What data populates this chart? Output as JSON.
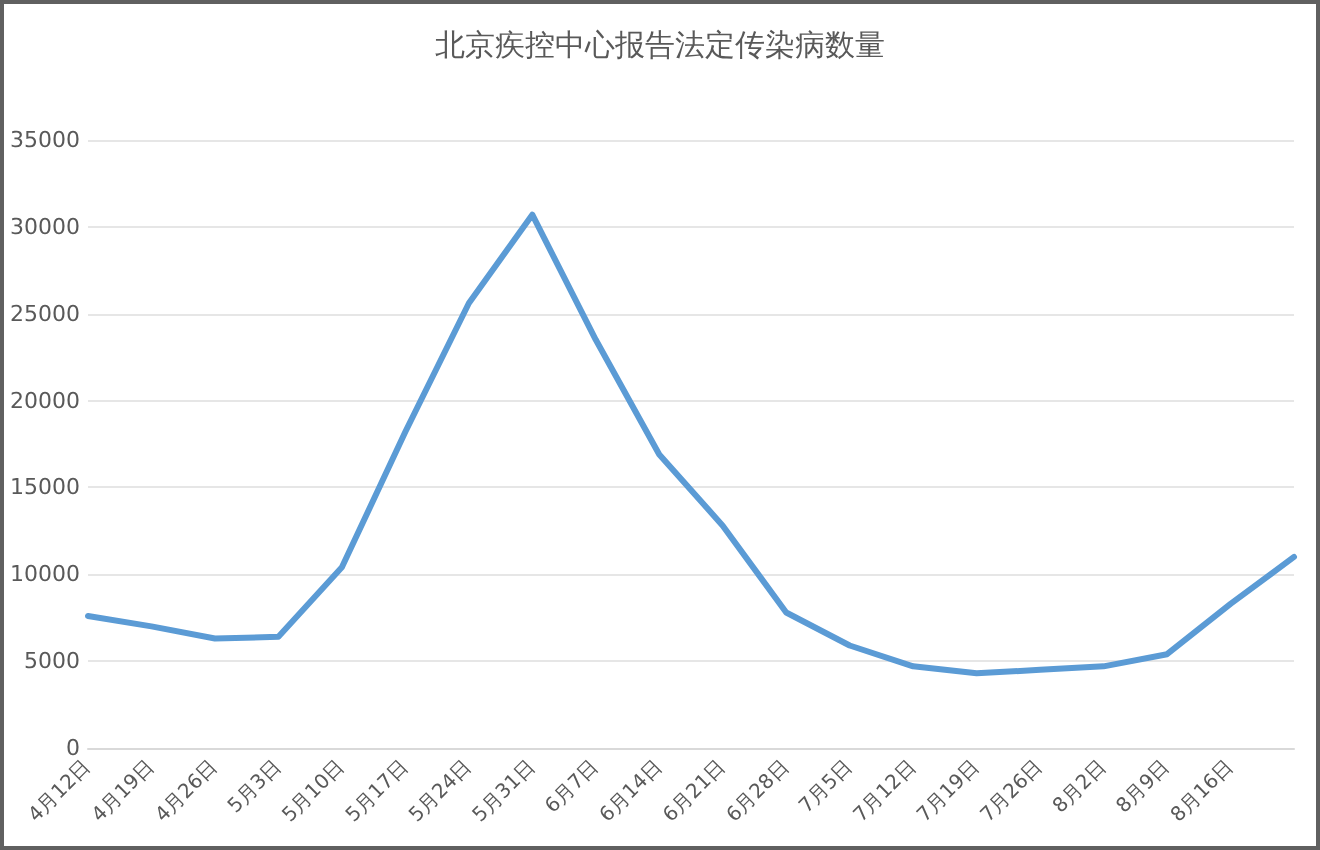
{
  "chart_data": {
    "type": "line",
    "title": "北京疾控中心报告法定传染病数量",
    "categories": [
      "4月12日",
      "4月19日",
      "4月26日",
      "5月3日",
      "5月10日",
      "5月17日",
      "5月24日",
      "5月31日",
      "6月7日",
      "6月14日",
      "6月21日",
      "6月28日",
      "7月5日",
      "7月12日",
      "7月19日",
      "7月26日",
      "8月2日",
      "8月9日",
      "8月16日",
      null
    ],
    "values": [
      7600,
      7000,
      6300,
      6400,
      10400,
      18200,
      25600,
      30700,
      23500,
      16900,
      12800,
      7800,
      5900,
      4700,
      4300,
      4500,
      4700,
      5400,
      8300,
      11000
    ],
    "color": "#5b9bd5",
    "ylim": [
      0,
      35000
    ],
    "yticks": [
      0,
      5000,
      10000,
      15000,
      20000,
      25000,
      30000,
      35000
    ],
    "grid": "y",
    "marker": "none",
    "line_style": "solid"
  }
}
